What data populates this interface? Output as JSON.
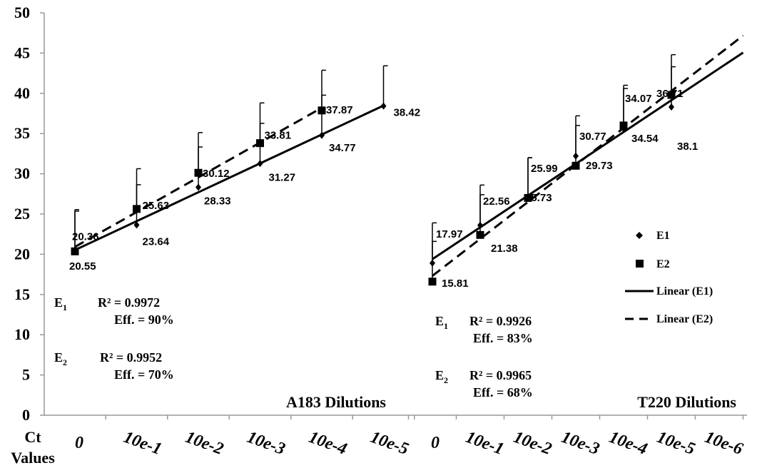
{
  "chart_data": {
    "type": "line",
    "ylabel": "Ct Values",
    "ylim": [
      0,
      50
    ],
    "yticks": [
      "0",
      "5",
      "10",
      "15",
      "20",
      "25",
      "30",
      "35",
      "40",
      "45",
      "50"
    ],
    "legend": {
      "placement": "right",
      "items": [
        "E1",
        "E2",
        "Linear (E1)",
        "Linear (E2)"
      ]
    },
    "panels": [
      {
        "title": "A183 Dilutions",
        "categories": [
          "0",
          "10e-1",
          "10e-2",
          "10e-3",
          "10e-4",
          "10e-5"
        ],
        "series": [
          {
            "name": "E1",
            "marker": "diamond",
            "values": [
              20.55,
              23.64,
              28.33,
              31.27,
              34.77,
              38.42
            ],
            "error_plus": [
              5.0,
              5.0,
              5.0,
              5.0,
              5.0,
              5.0
            ]
          },
          {
            "name": "E2",
            "marker": "square",
            "values": [
              20.36,
              25.63,
              30.12,
              33.81,
              37.87,
              null
            ],
            "error_plus": [
              5.0,
              5.0,
              5.0,
              5.0,
              5.0,
              null
            ]
          }
        ],
        "stats": [
          {
            "label": "E",
            "sub": "1",
            "r2": "R² = 0.9972",
            "eff": "Eff. = 90%"
          },
          {
            "label": "E",
            "sub": "2",
            "r2": "R² = 0.9952",
            "eff": "Eff. = 70%"
          }
        ]
      },
      {
        "title": "T220 Dilutions",
        "categories": [
          "0",
          "10e-1",
          "10e-2",
          "10e-3",
          "10e-4",
          "10e-5",
          "10e-6"
        ],
        "series": [
          {
            "name": "E1",
            "marker": "diamond",
            "values": [
              18.9,
              23.6,
              27.0,
              32.2,
              35.6,
              38.3,
              null
            ],
            "error_plus": [
              5.0,
              5.0,
              5.0,
              5.0,
              5.0,
              5.0,
              null
            ]
          },
          {
            "name": "E2",
            "marker": "square",
            "values": [
              16.6,
              22.4,
              27.0,
              31.0,
              36.0,
              39.8,
              null
            ],
            "error_plus": [
              5.0,
              5.0,
              5.0,
              5.0,
              5.0,
              5.0,
              null
            ]
          }
        ],
        "labels": [
          "17.97",
          "21.38",
          "22.56",
          "25.99",
          "25.73",
          "30.77",
          "29.73",
          "34.07",
          "34.54",
          "36.71",
          "38.1",
          "15.81"
        ],
        "stats": [
          {
            "label": "E",
            "sub": "1",
            "r2": "R² = 0.9926",
            "eff": "Eff. = 83%"
          },
          {
            "label": "E",
            "sub": "2",
            "r2": "R² = 0.9965",
            "eff": "Eff. = 68%"
          }
        ]
      }
    ]
  }
}
